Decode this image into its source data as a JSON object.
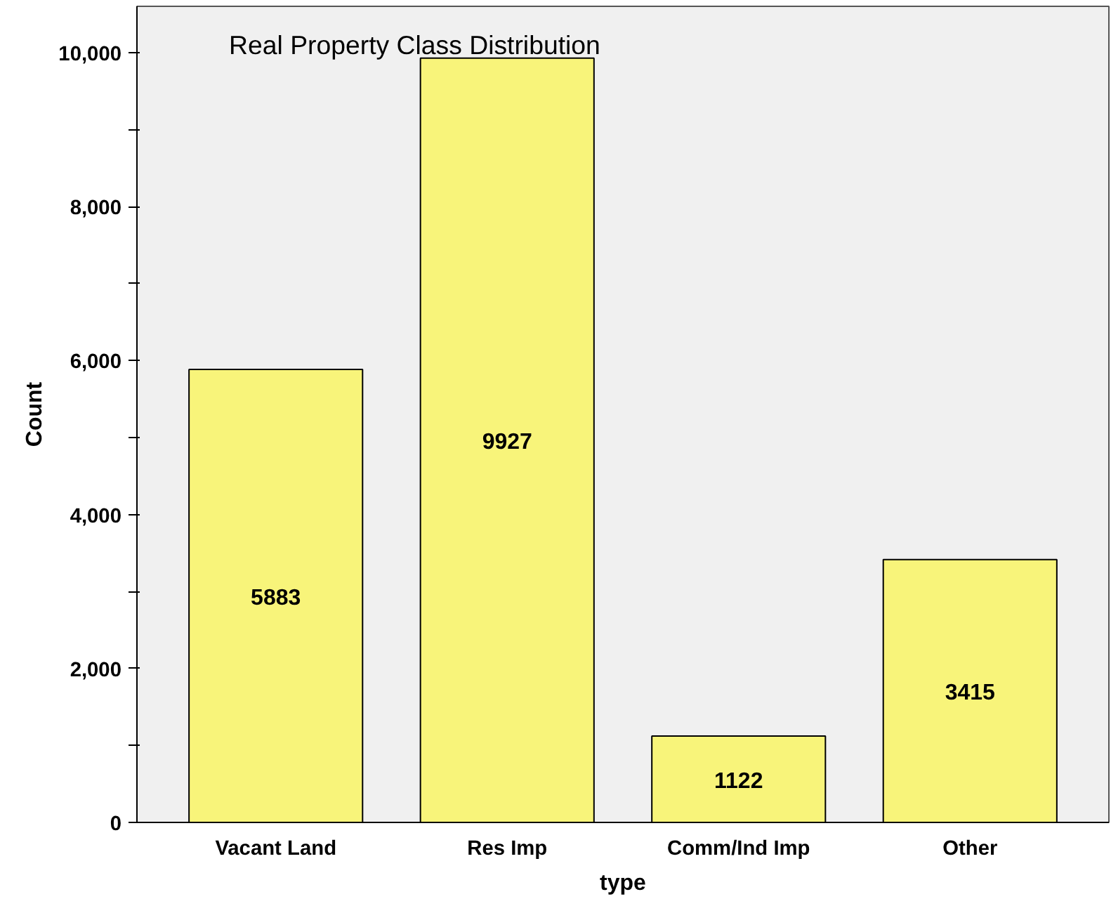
{
  "chart_data": {
    "type": "bar",
    "title": "Real Property Class Distribution",
    "xlabel": "type",
    "ylabel": "Count",
    "categories": [
      "Vacant Land",
      "Res Imp",
      "Comm/Ind Imp",
      "Other"
    ],
    "values": [
      5883,
      9927,
      1122,
      3415
    ],
    "color": "#f8f47a",
    "data_labels": true,
    "grid": false,
    "ylim": [
      0,
      10600
    ],
    "yticks": [
      0,
      {
        "value": 1000,
        "label": null
      },
      {
        "value": 2000,
        "label": "2,000"
      },
      {
        "value": 3000,
        "label": null
      },
      {
        "value": 4000,
        "label": "4,000"
      },
      {
        "value": 5000,
        "label": null
      },
      {
        "value": 6000,
        "label": "6,000"
      },
      {
        "value": 7000,
        "label": null
      },
      {
        "value": 8000,
        "label": "8,000"
      },
      {
        "value": 9000,
        "label": null
      },
      {
        "value": 10000,
        "label": "10,000"
      }
    ]
  }
}
